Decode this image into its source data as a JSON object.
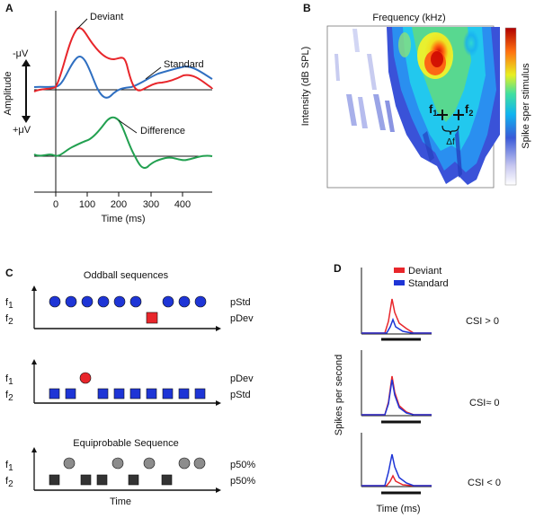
{
  "panel_a": {
    "letter": "A",
    "ylabel": "Amplitude",
    "neg_uv": "-μV",
    "pos_uv": "+μV",
    "deviant_label": "Deviant",
    "standard_label": "Standard",
    "difference_label": "Difference",
    "xlabel": "Time (ms)",
    "xticks": [
      "0",
      "100",
      "200",
      "300",
      "400"
    ],
    "colors": {
      "deviant": "#e8262b",
      "standard": "#2f6fc1",
      "difference": "#22a050"
    }
  },
  "panel_b": {
    "letter": "B",
    "title": "Frequency (kHz)",
    "ylabel": "Intensity (dB SPL)",
    "colorbar_label": "Spike sper stimulus",
    "f1": "f",
    "f1_sub": "1",
    "f2": "f",
    "f2_sub": "2",
    "delta_f": "Δf"
  },
  "panel_c": {
    "letter": "C",
    "oddball_title": "Oddball sequences",
    "equi_title": "Equiprobable Sequence",
    "f1": "f",
    "f1_sub": "1",
    "f2": "f",
    "f2_sub": "2",
    "row1_top": "pStd",
    "row1_bottom": "pDev",
    "row2_top": "pDev",
    "row2_bottom": "pStd",
    "row3_top": "p50%",
    "row3_bottom": "p50%",
    "xlabel": "Time",
    "colors": {
      "blue": "#1e35d6",
      "red": "#e8262b",
      "gray": "#8c8c8c",
      "dark": "#333333"
    }
  },
  "panel_d": {
    "letter": "D",
    "legend_deviant": "Deviant",
    "legend_standard": "Standard",
    "ylabel": "Spikes per second",
    "xlabel": "Time (ms)",
    "csi_1": "CSI > 0",
    "csi_2": "CSI≈ 0",
    "csi_3": "CSI < 0",
    "colors": {
      "deviant": "#e8262b",
      "standard": "#1e35d6"
    }
  }
}
